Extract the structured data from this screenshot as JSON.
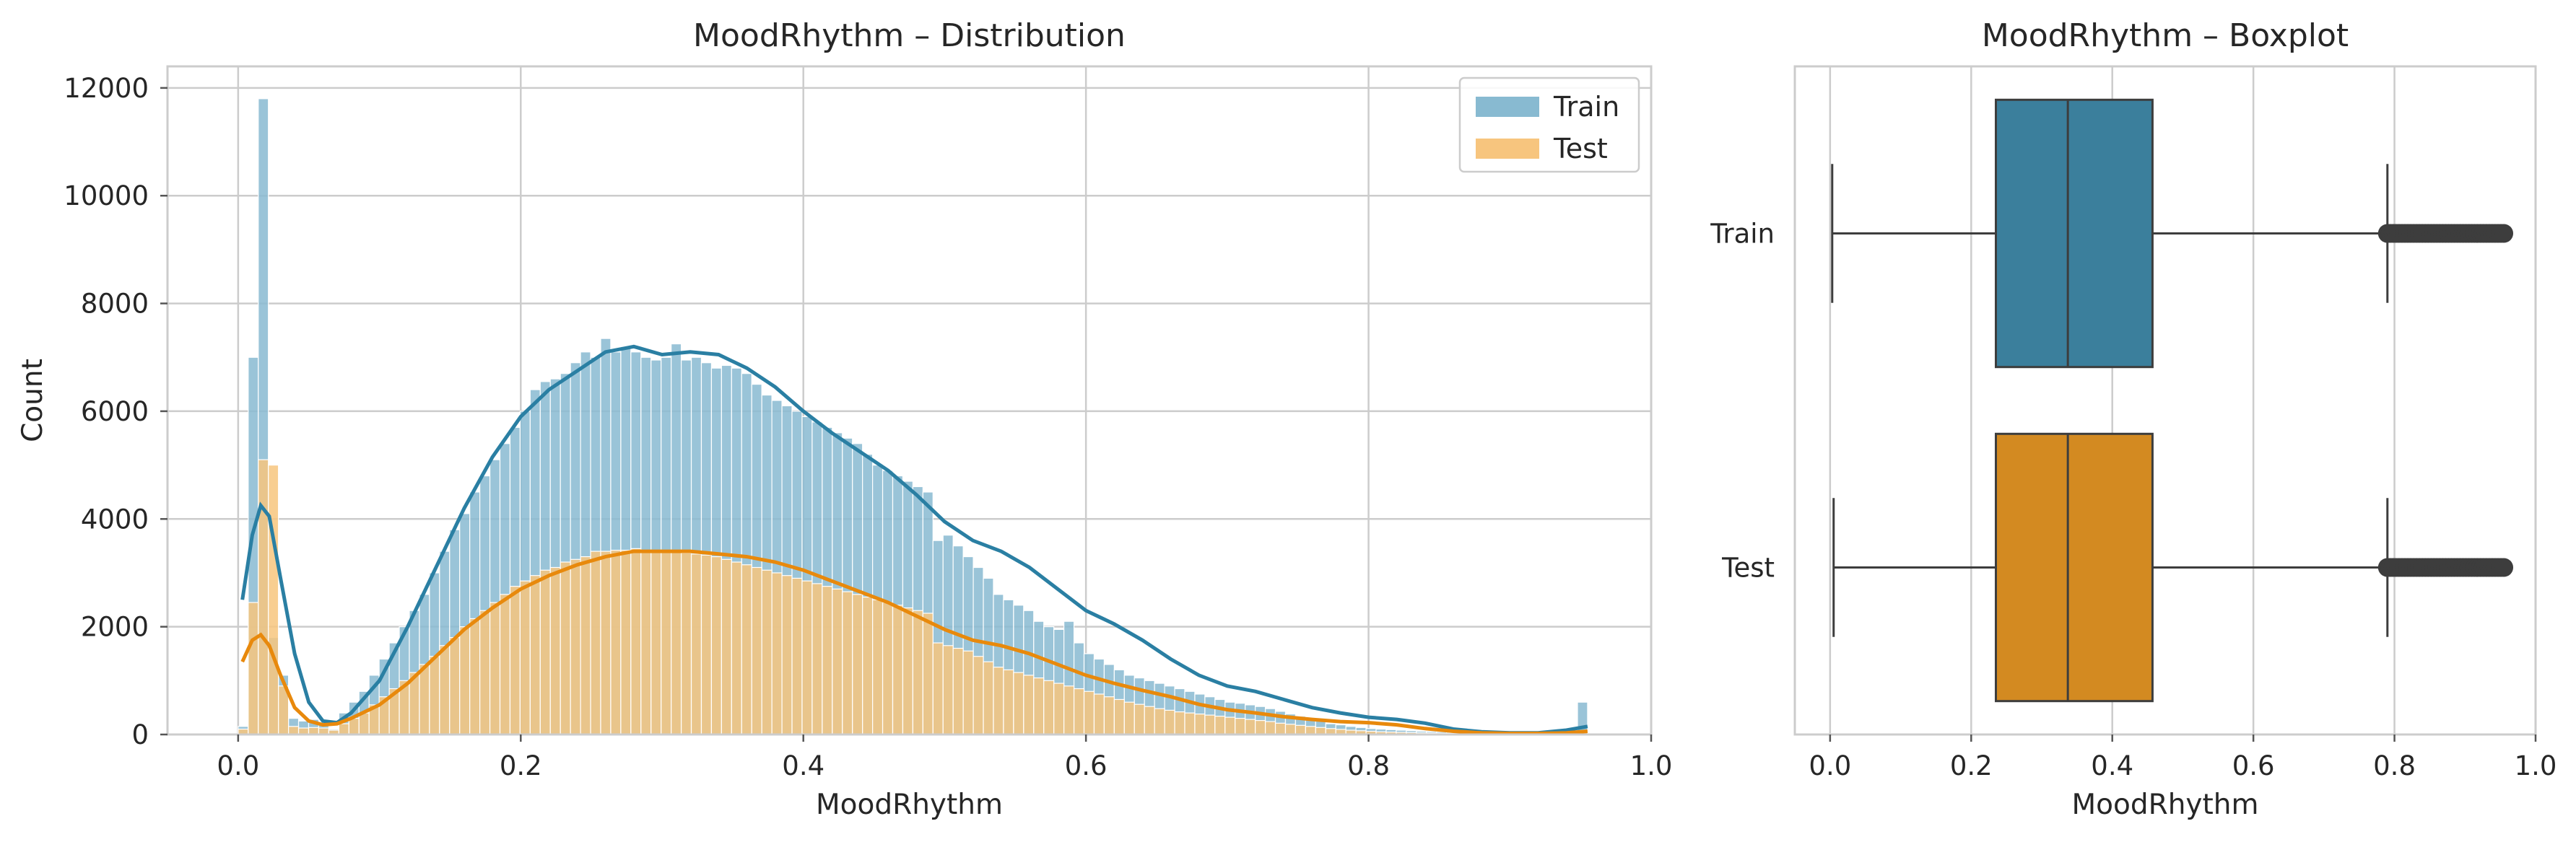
{
  "chart_data": [
    {
      "type": "histogram",
      "title": "MoodRhythm – Distribution",
      "xlabel": "MoodRhythm",
      "ylabel": "Count",
      "xlim": [
        -0.05,
        1.0
      ],
      "ylim": [
        0,
        12400
      ],
      "xticks": [
        0.0,
        0.2,
        0.4,
        0.6,
        0.8,
        1.0
      ],
      "xtick_labels": [
        "0.0",
        "0.2",
        "0.4",
        "0.6",
        "0.8",
        "1.0"
      ],
      "yticks": [
        0,
        2000,
        4000,
        6000,
        8000,
        10000,
        12000
      ],
      "ytick_labels": [
        "0",
        "2000",
        "4000",
        "6000",
        "8000",
        "10000",
        "12000"
      ],
      "grid": true,
      "legend_position": "top-right",
      "bin_range": [
        0.0,
        0.955
      ],
      "series": [
        {
          "name": "Train",
          "color": "#88bad1",
          "kde_color": "#2a7fa3",
          "counts": [
            150,
            7000,
            11800,
            1800,
            1100,
            300,
            250,
            280,
            200,
            100,
            400,
            600,
            800,
            1100,
            1400,
            1700,
            2000,
            2300,
            2600,
            3000,
            3400,
            3800,
            4100,
            4500,
            4800,
            5100,
            5400,
            5700,
            6000,
            6400,
            6550,
            6600,
            6700,
            6900,
            7100,
            7000,
            7350,
            7100,
            7200,
            7100,
            7000,
            6950,
            7000,
            7250,
            6950,
            7000,
            6900,
            6800,
            6850,
            6800,
            6700,
            6500,
            6300,
            6200,
            6100,
            6000,
            5900,
            5800,
            5700,
            5600,
            5500,
            5400,
            5200,
            5000,
            4900,
            4800,
            4700,
            4600,
            4500,
            3600,
            3700,
            3500,
            3300,
            3100,
            2900,
            2600,
            2500,
            2400,
            2300,
            2100,
            2000,
            1950,
            2100,
            1700,
            1500,
            1400,
            1300,
            1200,
            1100,
            1050,
            1000,
            950,
            900,
            850,
            800,
            750,
            700,
            650,
            600,
            580,
            550,
            520,
            480,
            430,
            380,
            340,
            300,
            250,
            200,
            180,
            150,
            130,
            110,
            100,
            90,
            80,
            70,
            60,
            55,
            50,
            50,
            45,
            40,
            40,
            40,
            40,
            40,
            40,
            40,
            40,
            40,
            40,
            40,
            600
          ],
          "kde": [
            [
              0.003,
              2500
            ],
            [
              0.01,
              3700
            ],
            [
              0.016,
              4250
            ],
            [
              0.022,
              4050
            ],
            [
              0.03,
              2900
            ],
            [
              0.04,
              1500
            ],
            [
              0.05,
              600
            ],
            [
              0.06,
              250
            ],
            [
              0.07,
              220
            ],
            [
              0.08,
              400
            ],
            [
              0.1,
              1000
            ],
            [
              0.12,
              2000
            ],
            [
              0.14,
              3100
            ],
            [
              0.16,
              4200
            ],
            [
              0.18,
              5150
            ],
            [
              0.2,
              5900
            ],
            [
              0.22,
              6400
            ],
            [
              0.24,
              6750
            ],
            [
              0.26,
              7100
            ],
            [
              0.28,
              7200
            ],
            [
              0.3,
              7050
            ],
            [
              0.32,
              7100
            ],
            [
              0.34,
              7050
            ],
            [
              0.36,
              6800
            ],
            [
              0.38,
              6450
            ],
            [
              0.4,
              6000
            ],
            [
              0.42,
              5600
            ],
            [
              0.44,
              5250
            ],
            [
              0.46,
              4900
            ],
            [
              0.48,
              4450
            ],
            [
              0.5,
              3950
            ],
            [
              0.52,
              3600
            ],
            [
              0.54,
              3400
            ],
            [
              0.56,
              3100
            ],
            [
              0.58,
              2700
            ],
            [
              0.6,
              2300
            ],
            [
              0.62,
              2050
            ],
            [
              0.64,
              1750
            ],
            [
              0.66,
              1400
            ],
            [
              0.68,
              1100
            ],
            [
              0.7,
              900
            ],
            [
              0.72,
              800
            ],
            [
              0.74,
              650
            ],
            [
              0.76,
              500
            ],
            [
              0.78,
              400
            ],
            [
              0.8,
              320
            ],
            [
              0.82,
              280
            ],
            [
              0.84,
              210
            ],
            [
              0.86,
              100
            ],
            [
              0.88,
              50
            ],
            [
              0.9,
              30
            ],
            [
              0.92,
              30
            ],
            [
              0.94,
              80
            ],
            [
              0.955,
              150
            ]
          ]
        },
        {
          "name": "Test",
          "color": "#f7c57e",
          "kde_color": "#e8890c",
          "counts": [
            100,
            2450,
            5100,
            5000,
            900,
            150,
            120,
            130,
            120,
            80,
            200,
            300,
            400,
            550,
            700,
            850,
            1000,
            1150,
            1300,
            1450,
            1650,
            1800,
            2000,
            2150,
            2300,
            2450,
            2600,
            2750,
            2850,
            2950,
            3050,
            3100,
            3200,
            3250,
            3300,
            3400,
            3400,
            3420,
            3420,
            3450,
            3420,
            3400,
            3400,
            3380,
            3370,
            3350,
            3330,
            3300,
            3250,
            3200,
            3150,
            3100,
            3050,
            3000,
            2950,
            2900,
            2850,
            2800,
            2750,
            2700,
            2650,
            2600,
            2550,
            2500,
            2450,
            2400,
            2350,
            2300,
            2250,
            1700,
            1650,
            1600,
            1550,
            1450,
            1350,
            1250,
            1200,
            1150,
            1100,
            1050,
            1000,
            950,
            900,
            850,
            800,
            750,
            700,
            650,
            600,
            560,
            520,
            480,
            450,
            420,
            400,
            380,
            360,
            340,
            320,
            300,
            280,
            260,
            240,
            210,
            190,
            170,
            150,
            130,
            110,
            95,
            80,
            70,
            60,
            50,
            45,
            40,
            35,
            30,
            28,
            25,
            25,
            22,
            20,
            20,
            20,
            20,
            20,
            20,
            20,
            20,
            20,
            20,
            20,
            60
          ],
          "kde": [
            [
              0.003,
              1350
            ],
            [
              0.01,
              1750
            ],
            [
              0.016,
              1850
            ],
            [
              0.022,
              1650
            ],
            [
              0.03,
              1100
            ],
            [
              0.04,
              500
            ],
            [
              0.05,
              250
            ],
            [
              0.06,
              180
            ],
            [
              0.07,
              200
            ],
            [
              0.08,
              300
            ],
            [
              0.1,
              550
            ],
            [
              0.12,
              950
            ],
            [
              0.14,
              1450
            ],
            [
              0.16,
              1950
            ],
            [
              0.18,
              2350
            ],
            [
              0.2,
              2700
            ],
            [
              0.22,
              2950
            ],
            [
              0.24,
              3150
            ],
            [
              0.26,
              3300
            ],
            [
              0.28,
              3400
            ],
            [
              0.3,
              3400
            ],
            [
              0.32,
              3400
            ],
            [
              0.34,
              3350
            ],
            [
              0.36,
              3300
            ],
            [
              0.38,
              3200
            ],
            [
              0.4,
              3050
            ],
            [
              0.42,
              2850
            ],
            [
              0.44,
              2650
            ],
            [
              0.46,
              2450
            ],
            [
              0.48,
              2200
            ],
            [
              0.5,
              1950
            ],
            [
              0.52,
              1750
            ],
            [
              0.54,
              1650
            ],
            [
              0.56,
              1500
            ],
            [
              0.58,
              1300
            ],
            [
              0.6,
              1100
            ],
            [
              0.62,
              950
            ],
            [
              0.64,
              820
            ],
            [
              0.66,
              700
            ],
            [
              0.68,
              560
            ],
            [
              0.7,
              460
            ],
            [
              0.72,
              400
            ],
            [
              0.74,
              330
            ],
            [
              0.76,
              280
            ],
            [
              0.78,
              240
            ],
            [
              0.8,
              220
            ],
            [
              0.82,
              180
            ],
            [
              0.84,
              110
            ],
            [
              0.86,
              60
            ],
            [
              0.88,
              30
            ],
            [
              0.9,
              20
            ],
            [
              0.92,
              20
            ],
            [
              0.94,
              30
            ],
            [
              0.955,
              60
            ]
          ]
        }
      ]
    },
    {
      "type": "box",
      "title": "MoodRhythm – Boxplot",
      "xlabel": "MoodRhythm",
      "xlim": [
        -0.05,
        1.0
      ],
      "xticks": [
        0.0,
        0.2,
        0.4,
        0.6,
        0.8,
        1.0
      ],
      "xtick_labels": [
        "0.0",
        "0.2",
        "0.4",
        "0.6",
        "0.8",
        "1.0"
      ],
      "categories": [
        "Train",
        "Test"
      ],
      "grid": true,
      "series": [
        {
          "name": "Train",
          "color": "#3b7f9c",
          "min": 0.003,
          "q1": 0.235,
          "median": 0.337,
          "q3": 0.457,
          "max": 0.79,
          "outliers_range": [
            0.79,
            0.955
          ]
        },
        {
          "name": "Test",
          "color": "#d38a21",
          "min": 0.005,
          "q1": 0.235,
          "median": 0.337,
          "q3": 0.457,
          "max": 0.79,
          "outliers_range": [
            0.79,
            0.955
          ]
        }
      ]
    }
  ]
}
